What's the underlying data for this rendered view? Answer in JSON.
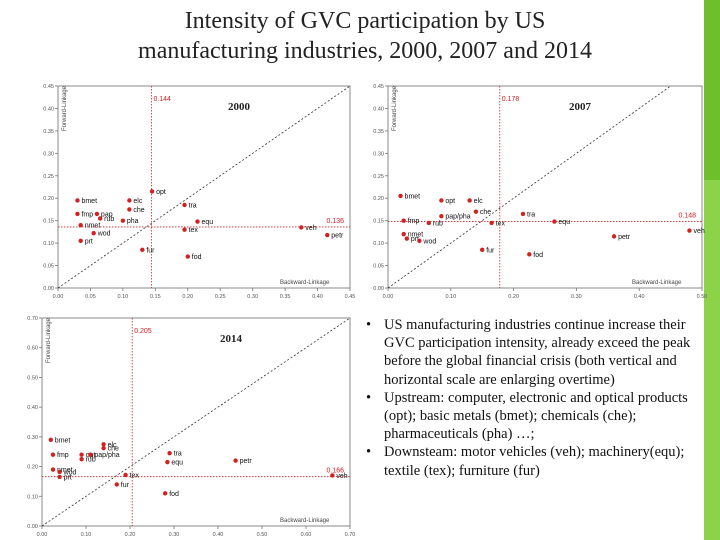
{
  "slide": {
    "title_line1": "Intensity of GVC participation by US",
    "title_line2": "manufacturing industries, 2000, 2007 and 2014",
    "accent_colors": [
      "#6fbf2c",
      "#8cd34a"
    ]
  },
  "bullets": [
    {
      "dot": "•",
      "text": "US manufacturing industries continue increase their GVC participation intensity, already exceed the peak before the global financial crisis (both vertical and horizontal scale are enlarging overtime)"
    },
    {
      "dot": "•",
      "text": "Upstream: computer, electronic and optical products (opt); basic metals (bmet); chemicals (che); pharmaceuticals (pha) …;"
    },
    {
      "dot": "•",
      "text": "Downsteam: motor vehicles (veh); machinery(equ); textile (tex); furniture (fur)"
    }
  ],
  "chart_data": [
    {
      "type": "scatter",
      "title": "2000",
      "xlabel": "Backward-Linkage",
      "ylabel": "Forward-Linkage",
      "xlim": [
        0,
        0.45
      ],
      "ylim": [
        0,
        0.45
      ],
      "x_ticks": [
        "0.00",
        "0.05",
        "0.10",
        "0.15",
        "0.20",
        "0.25",
        "0.30",
        "0.35",
        "0.40",
        "0.45"
      ],
      "y_ticks": [
        "0.00",
        "0.05",
        "0.10",
        "0.15",
        "0.20",
        "0.25",
        "0.30",
        "0.35",
        "0.40",
        "0.45"
      ],
      "marker_color": "#d32020",
      "ref_vline": {
        "x": 0.144,
        "label": "0.144"
      },
      "ref_hline": {
        "y": 0.136,
        "label": "0.136"
      },
      "diagonal": true,
      "points": [
        {
          "label": "opt",
          "x": 0.145,
          "y": 0.215
        },
        {
          "label": "bmet",
          "x": 0.03,
          "y": 0.195
        },
        {
          "label": "elc",
          "x": 0.11,
          "y": 0.195
        },
        {
          "label": "tra",
          "x": 0.195,
          "y": 0.185
        },
        {
          "label": "che",
          "x": 0.11,
          "y": 0.175
        },
        {
          "label": "fmp",
          "x": 0.03,
          "y": 0.165
        },
        {
          "label": "pap",
          "x": 0.06,
          "y": 0.165
        },
        {
          "label": "rub",
          "x": 0.065,
          "y": 0.155
        },
        {
          "label": "pha",
          "x": 0.1,
          "y": 0.15
        },
        {
          "label": "nmet",
          "x": 0.035,
          "y": 0.14
        },
        {
          "label": "equ",
          "x": 0.215,
          "y": 0.148
        },
        {
          "label": "tex",
          "x": 0.195,
          "y": 0.13
        },
        {
          "label": "wod",
          "x": 0.055,
          "y": 0.122
        },
        {
          "label": "veh",
          "x": 0.375,
          "y": 0.135
        },
        {
          "label": "petr",
          "x": 0.415,
          "y": 0.118
        },
        {
          "label": "prt",
          "x": 0.035,
          "y": 0.105
        },
        {
          "label": "fur",
          "x": 0.13,
          "y": 0.085
        },
        {
          "label": "fod",
          "x": 0.2,
          "y": 0.07
        }
      ]
    },
    {
      "type": "scatter",
      "title": "2007",
      "xlabel": "Backward-Linkage",
      "ylabel": "Forward-Linkage",
      "xlim": [
        0,
        0.5
      ],
      "ylim": [
        0,
        0.45
      ],
      "x_ticks": [
        "0.00",
        "0.10",
        "0.20",
        "0.30",
        "0.40",
        "0.50"
      ],
      "y_ticks": [
        "0.00",
        "0.05",
        "0.10",
        "0.15",
        "0.20",
        "0.25",
        "0.30",
        "0.35",
        "0.40",
        "0.45"
      ],
      "marker_color": "#d32020",
      "ref_vline": {
        "x": 0.178,
        "label": "0.178"
      },
      "ref_hline": {
        "y": 0.148,
        "label": "0.148"
      },
      "diagonal": true,
      "points": [
        {
          "label": "bmet",
          "x": 0.02,
          "y": 0.205
        },
        {
          "label": "opt",
          "x": 0.085,
          "y": 0.195
        },
        {
          "label": "elc",
          "x": 0.13,
          "y": 0.195
        },
        {
          "label": "che",
          "x": 0.14,
          "y": 0.17
        },
        {
          "label": "tra",
          "x": 0.215,
          "y": 0.165
        },
        {
          "label": "pap/pha",
          "x": 0.085,
          "y": 0.16
        },
        {
          "label": "fmp",
          "x": 0.025,
          "y": 0.15
        },
        {
          "label": "rub",
          "x": 0.065,
          "y": 0.145
        },
        {
          "label": "tex",
          "x": 0.165,
          "y": 0.145
        },
        {
          "label": "equ",
          "x": 0.265,
          "y": 0.148
        },
        {
          "label": "nmet",
          "x": 0.025,
          "y": 0.12
        },
        {
          "label": "prt",
          "x": 0.03,
          "y": 0.11
        },
        {
          "label": "wod",
          "x": 0.05,
          "y": 0.105
        },
        {
          "label": "veh",
          "x": 0.48,
          "y": 0.128
        },
        {
          "label": "petr",
          "x": 0.36,
          "y": 0.115
        },
        {
          "label": "fur",
          "x": 0.15,
          "y": 0.085
        },
        {
          "label": "fod",
          "x": 0.225,
          "y": 0.075
        }
      ]
    },
    {
      "type": "scatter",
      "title": "2014",
      "xlabel": "Backward-Linkage",
      "ylabel": "Forward-Linkage",
      "xlim": [
        0,
        0.7
      ],
      "ylim": [
        0,
        0.7
      ],
      "x_ticks": [
        "0.00",
        "0.10",
        "0.20",
        "0.30",
        "0.40",
        "0.50",
        "0.60",
        "0.70"
      ],
      "y_ticks": [
        "0.00",
        "0.10",
        "0.20",
        "0.30",
        "0.40",
        "0.50",
        "0.60",
        "0.70"
      ],
      "marker_color": "#d32020",
      "ref_vline": {
        "x": 0.205,
        "label": "0.205"
      },
      "ref_hline": {
        "y": 0.166,
        "label": "0.166"
      },
      "diagonal": true,
      "points": [
        {
          "label": "bmet",
          "x": 0.02,
          "y": 0.29
        },
        {
          "label": "elc",
          "x": 0.14,
          "y": 0.275
        },
        {
          "label": "che",
          "x": 0.14,
          "y": 0.262
        },
        {
          "label": "fmp",
          "x": 0.025,
          "y": 0.24
        },
        {
          "label": "opt",
          "x": 0.09,
          "y": 0.24
        },
        {
          "label": "pap/pha",
          "x": 0.11,
          "y": 0.24
        },
        {
          "label": "tra",
          "x": 0.29,
          "y": 0.245
        },
        {
          "label": "rub",
          "x": 0.09,
          "y": 0.225
        },
        {
          "label": "equ",
          "x": 0.285,
          "y": 0.215
        },
        {
          "label": "petr",
          "x": 0.44,
          "y": 0.22
        },
        {
          "label": "nmet",
          "x": 0.025,
          "y": 0.19
        },
        {
          "label": "wod",
          "x": 0.04,
          "y": 0.182
        },
        {
          "label": "prt",
          "x": 0.04,
          "y": 0.165
        },
        {
          "label": "tex",
          "x": 0.19,
          "y": 0.172
        },
        {
          "label": "veh",
          "x": 0.66,
          "y": 0.17
        },
        {
          "label": "fur",
          "x": 0.17,
          "y": 0.14
        },
        {
          "label": "fod",
          "x": 0.28,
          "y": 0.11
        }
      ]
    }
  ]
}
